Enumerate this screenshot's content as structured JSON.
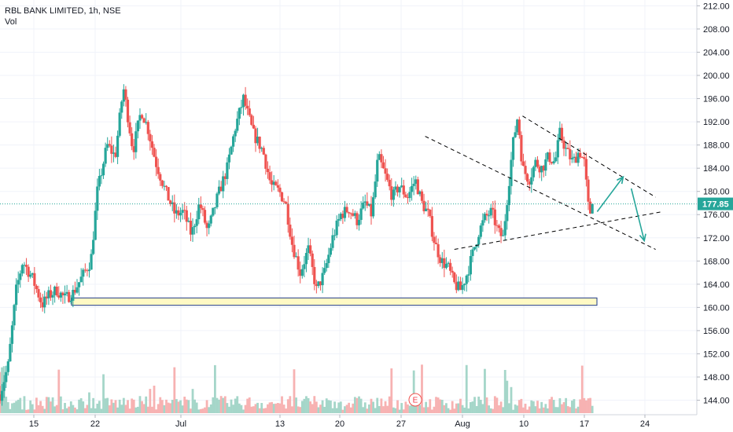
{
  "header": {
    "symbol_line": "RBL BANK LIMITED, 1h, NSE",
    "volume_label": "Vol"
  },
  "current_price": {
    "value": 177.85,
    "label": "177.85"
  },
  "event_marker": {
    "label": "E"
  },
  "colors": {
    "up": "#26a69a",
    "down": "#ef5350",
    "volume_up": "#a5d6c9",
    "volume_down": "#f7b2b2",
    "grid": "#f0f3fa",
    "price_line": "#26a69a",
    "support_zone_fill": "#fff9c4",
    "support_zone_border": "#1e3a8a",
    "trendline": "#000000",
    "arrow": "#26a69a"
  },
  "chart_data": {
    "type": "candlestick",
    "title": "RBL BANK LIMITED, 1h, NSE",
    "y_axis": {
      "ticks": [
        144,
        148,
        152,
        156,
        160,
        164,
        168,
        172,
        176,
        180,
        184,
        188,
        192,
        196,
        200,
        204,
        208,
        212
      ],
      "tick_labels": [
        "144.00",
        "148.00",
        "152.00",
        "156.00",
        "160.00",
        "164.00",
        "168.00",
        "172.00",
        "176.00",
        "180.00",
        "184.00",
        "188.00",
        "192.00",
        "196.00",
        "200.00",
        "204.00",
        "208.00",
        "212.00"
      ],
      "range": [
        141.5,
        213
      ]
    },
    "x_axis": {
      "tick_labels": [
        "15",
        "22",
        "Jul",
        "13",
        "20",
        "27",
        "Aug",
        "10",
        "17",
        "24"
      ]
    },
    "grid": true,
    "price_path": [
      {
        "t": 0.0,
        "p": 145.0
      },
      {
        "t": 0.5,
        "p": 150.0
      },
      {
        "t": 1.0,
        "p": 163.0
      },
      {
        "t": 1.4,
        "p": 168.0
      },
      {
        "t": 2.0,
        "p": 165.0
      },
      {
        "t": 2.6,
        "p": 160.5
      },
      {
        "t": 3.0,
        "p": 162.0
      },
      {
        "t": 3.5,
        "p": 163.0
      },
      {
        "t": 4.0,
        "p": 161.5
      },
      {
        "t": 4.5,
        "p": 162.5
      },
      {
        "t": 5.0,
        "p": 165.0
      },
      {
        "t": 5.6,
        "p": 168.0
      },
      {
        "t": 6.0,
        "p": 180.0
      },
      {
        "t": 6.6,
        "p": 188.0
      },
      {
        "t": 7.1,
        "p": 186.0
      },
      {
        "t": 7.6,
        "p": 198.0
      },
      {
        "t": 8.2,
        "p": 187.0
      },
      {
        "t": 8.7,
        "p": 194.0
      },
      {
        "t": 9.1,
        "p": 191.0
      },
      {
        "t": 9.6,
        "p": 185.0
      },
      {
        "t": 10.2,
        "p": 180.0
      },
      {
        "t": 10.8,
        "p": 176.0
      },
      {
        "t": 11.3,
        "p": 176.5
      },
      {
        "t": 11.8,
        "p": 172.5
      },
      {
        "t": 12.3,
        "p": 178.0
      },
      {
        "t": 12.8,
        "p": 173.0
      },
      {
        "t": 13.4,
        "p": 179.0
      },
      {
        "t": 14.0,
        "p": 184.0
      },
      {
        "t": 14.5,
        "p": 191.0
      },
      {
        "t": 15.0,
        "p": 196.0
      },
      {
        "t": 15.6,
        "p": 190.0
      },
      {
        "t": 16.2,
        "p": 187.0
      },
      {
        "t": 16.7,
        "p": 181.0
      },
      {
        "t": 17.2,
        "p": 180.0
      },
      {
        "t": 17.6,
        "p": 178.0
      },
      {
        "t": 18.0,
        "p": 171.0
      },
      {
        "t": 18.5,
        "p": 166.0
      },
      {
        "t": 19.0,
        "p": 170.0
      },
      {
        "t": 19.5,
        "p": 163.0
      },
      {
        "t": 20.0,
        "p": 166.0
      },
      {
        "t": 20.5,
        "p": 172.0
      },
      {
        "t": 21.0,
        "p": 176.0
      },
      {
        "t": 21.5,
        "p": 177.0
      },
      {
        "t": 22.0,
        "p": 175.0
      },
      {
        "t": 22.5,
        "p": 178.0
      },
      {
        "t": 22.9,
        "p": 176.0
      },
      {
        "t": 23.3,
        "p": 186.0
      },
      {
        "t": 23.7,
        "p": 183.0
      },
      {
        "t": 24.2,
        "p": 179.0
      },
      {
        "t": 24.6,
        "p": 181.0
      },
      {
        "t": 25.1,
        "p": 179.0
      },
      {
        "t": 25.6,
        "p": 182.0
      },
      {
        "t": 26.0,
        "p": 178.0
      },
      {
        "t": 26.4,
        "p": 176.0
      },
      {
        "t": 26.8,
        "p": 171.0
      },
      {
        "t": 27.2,
        "p": 168.0
      },
      {
        "t": 27.6,
        "p": 167.0
      },
      {
        "t": 28.0,
        "p": 164.0
      },
      {
        "t": 28.4,
        "p": 163.0
      },
      {
        "t": 28.8,
        "p": 166.0
      },
      {
        "t": 29.2,
        "p": 170.0
      },
      {
        "t": 29.5,
        "p": 173.0
      },
      {
        "t": 29.9,
        "p": 175.5
      },
      {
        "t": 30.3,
        "p": 176.5
      },
      {
        "t": 30.7,
        "p": 173.0
      },
      {
        "t": 31.0,
        "p": 172.0
      },
      {
        "t": 31.3,
        "p": 180.0
      },
      {
        "t": 31.6,
        "p": 188.0
      },
      {
        "t": 31.9,
        "p": 193.0
      },
      {
        "t": 32.2,
        "p": 184.0
      },
      {
        "t": 32.6,
        "p": 182.0
      },
      {
        "t": 33.0,
        "p": 185.0
      },
      {
        "t": 33.4,
        "p": 184.0
      },
      {
        "t": 33.8,
        "p": 186.0
      },
      {
        "t": 34.2,
        "p": 185.0
      },
      {
        "t": 34.5,
        "p": 190.0
      },
      {
        "t": 34.9,
        "p": 187.0
      },
      {
        "t": 35.3,
        "p": 185.0
      },
      {
        "t": 35.7,
        "p": 187.0
      },
      {
        "t": 36.0,
        "p": 185.0
      },
      {
        "t": 36.3,
        "p": 176.0
      },
      {
        "t": 36.6,
        "p": 177.85
      }
    ],
    "support_zone": {
      "low": 160.5,
      "high": 161.5
    },
    "trendlines": [
      {
        "from": {
          "t": 26.2,
          "p": 189.5
        },
        "to": {
          "t": 40.4,
          "p": 170.0
        }
      },
      {
        "from": {
          "t": 32.2,
          "p": 193.0
        },
        "to": {
          "t": 40.4,
          "p": 179.0
        }
      },
      {
        "from": {
          "t": 28.0,
          "p": 170.0
        },
        "to": {
          "t": 40.8,
          "p": 176.5
        }
      }
    ],
    "projection_arrows": [
      {
        "from": {
          "t": 36.8,
          "p": 176.5
        },
        "to": {
          "t": 38.4,
          "p": 182.5
        }
      },
      {
        "from": {
          "t": 38.9,
          "p": 180.5
        },
        "to": {
          "t": 39.7,
          "p": 171.5
        }
      }
    ]
  }
}
